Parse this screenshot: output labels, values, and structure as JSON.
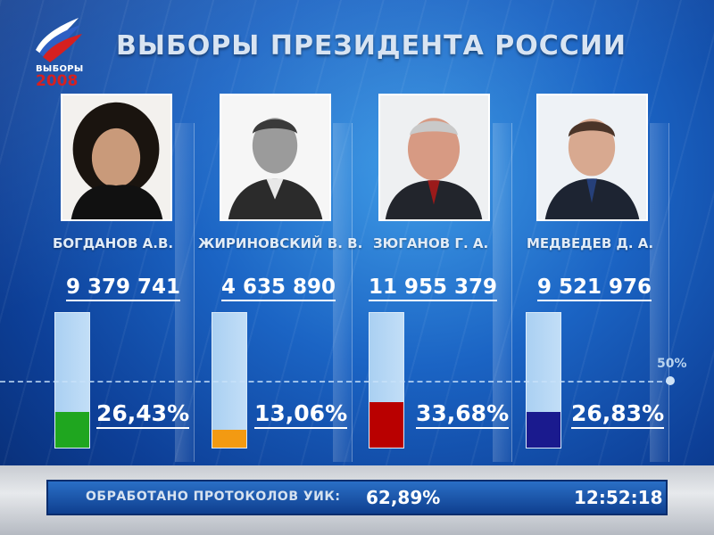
{
  "logo": {
    "word": "ВЫБОРЫ",
    "year": "2008"
  },
  "title": "ВЫБОРЫ ПРЕЗИДЕНТА РОССИИ",
  "threshold_label": "50%",
  "chart_data": {
    "type": "bar",
    "categories": [
      "БОГДАНОВ А.В.",
      "ЖИРИНОВСКИЙ  В. В.",
      "ЗЮГАНОВ Г. А.",
      "МЕДВЕДЕВ Д. А."
    ],
    "votes": [
      "9 379 741",
      "4 635 890",
      "11 955 379",
      "9 521 976"
    ],
    "percent_labels": [
      "26,43%",
      "13,06%",
      "33,68%",
      "26,83%"
    ],
    "values": [
      26.43,
      13.06,
      33.68,
      26.83
    ],
    "colors": [
      "#1fa61f",
      "#f39a12",
      "#b90000",
      "#1a1a8e"
    ],
    "ylim": [
      0,
      100
    ],
    "reference_line": 50
  },
  "footer": {
    "label": "ОБРАБОТАНО ПРОТОКОЛОВ УИК:",
    "value": "62,89%",
    "time": "12:52:18"
  }
}
